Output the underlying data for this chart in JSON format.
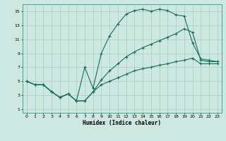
{
  "xlabel": "Humidex (Indice chaleur)",
  "bg_color": "#cce8e0",
  "grid_color": "#aaccbf",
  "line_color": "#1a6b5a",
  "x": [
    0,
    1,
    2,
    3,
    4,
    5,
    6,
    7,
    8,
    9,
    10,
    11,
    12,
    13,
    14,
    15,
    16,
    17,
    18,
    19,
    20,
    21,
    22,
    23
  ],
  "line_top": [
    5.0,
    4.5,
    4.5,
    3.5,
    2.7,
    3.2,
    2.2,
    7.0,
    4.0,
    9.0,
    11.5,
    13.2,
    14.6,
    15.1,
    15.3,
    15.0,
    15.3,
    15.1,
    14.5,
    14.3,
    10.5,
    8.2,
    8.0,
    7.8
  ],
  "line_mid": [
    5.0,
    4.5,
    4.5,
    3.5,
    2.7,
    3.2,
    2.2,
    2.2,
    3.5,
    5.2,
    6.5,
    7.5,
    8.5,
    9.2,
    9.8,
    10.3,
    10.8,
    11.3,
    11.8,
    12.5,
    12.0,
    8.0,
    7.8,
    7.8
  ],
  "line_bot": [
    5.0,
    4.5,
    4.5,
    3.5,
    2.7,
    3.2,
    2.2,
    2.2,
    3.5,
    4.5,
    5.0,
    5.5,
    6.0,
    6.5,
    6.8,
    7.0,
    7.3,
    7.5,
    7.8,
    8.0,
    8.3,
    7.5,
    7.5,
    7.5
  ],
  "xlim": [
    -0.5,
    23.5
  ],
  "ylim": [
    0.5,
    16.0
  ],
  "yticks": [
    1,
    3,
    5,
    7,
    9,
    11,
    13,
    15
  ],
  "xticks": [
    0,
    1,
    2,
    3,
    4,
    5,
    6,
    7,
    8,
    9,
    10,
    11,
    12,
    13,
    14,
    15,
    16,
    17,
    18,
    19,
    20,
    21,
    22,
    23
  ]
}
